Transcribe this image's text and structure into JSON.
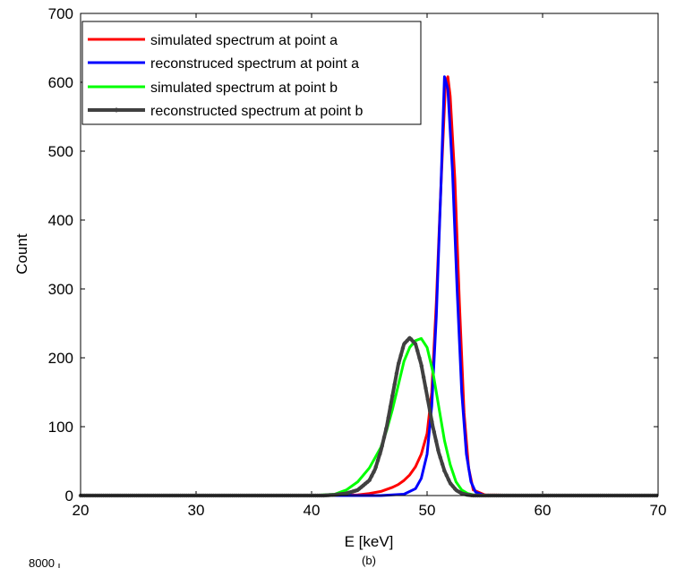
{
  "chart_data": {
    "type": "line",
    "title": "",
    "xlabel": "E [keV]",
    "ylabel": "Count",
    "xlim": [
      20,
      70
    ],
    "ylim": [
      0,
      700
    ],
    "x_ticks": [
      20,
      30,
      40,
      50,
      60,
      70
    ],
    "y_ticks": [
      0,
      100,
      200,
      300,
      400,
      500,
      600,
      700
    ],
    "grid": false,
    "legend_position": "top-left",
    "series": [
      {
        "name": "simulated spectrum at point a",
        "color": "#ff0000",
        "x": [
          20,
          40,
          44,
          45,
          46,
          47,
          47.5,
          48,
          48.5,
          49,
          49.5,
          50,
          50.4,
          50.8,
          51.2,
          51.6,
          51.8,
          52,
          52.4,
          52.8,
          53.2,
          53.6,
          54,
          55,
          60,
          70
        ],
        "y": [
          0,
          0,
          1,
          3,
          6,
          12,
          16,
          22,
          30,
          42,
          60,
          90,
          150,
          280,
          450,
          600,
          608,
          580,
          460,
          280,
          120,
          40,
          8,
          1,
          0,
          0
        ]
      },
      {
        "name": "reconstruced spectrum at point a",
        "color": "#0000ff",
        "x": [
          20,
          46,
          48,
          49,
          49.5,
          50,
          50.4,
          50.8,
          51.2,
          51.5,
          51.8,
          52.2,
          52.6,
          53,
          53.4,
          53.8,
          54.2,
          55,
          60,
          70
        ],
        "y": [
          0,
          0,
          2,
          10,
          25,
          60,
          130,
          260,
          450,
          608,
          590,
          470,
          300,
          150,
          60,
          20,
          5,
          0,
          0,
          0
        ]
      },
      {
        "name": "simulated spectrum at point b",
        "color": "#00ff00",
        "x": [
          20,
          40,
          42,
          43,
          44,
          45,
          46,
          46.5,
          47,
          47.5,
          48,
          48.5,
          49,
          49.5,
          50,
          50.5,
          51,
          51.5,
          52,
          52.5,
          53,
          53.5,
          54,
          55,
          60,
          70
        ],
        "y": [
          0,
          0,
          2,
          8,
          20,
          40,
          70,
          95,
          125,
          160,
          195,
          215,
          225,
          228,
          215,
          180,
          130,
          80,
          45,
          20,
          8,
          3,
          1,
          0,
          0,
          0
        ]
      },
      {
        "name": "reconstructed spectrum at point b",
        "color": "#404040",
        "x": [
          20,
          39,
          41,
          42,
          43,
          44,
          45,
          45.5,
          46,
          46.5,
          47,
          47.5,
          48,
          48.5,
          49,
          49.5,
          50,
          50.5,
          51,
          51.5,
          52,
          52.5,
          53,
          53.5,
          54,
          55,
          60,
          70
        ],
        "y": [
          0,
          0,
          0,
          1,
          3,
          8,
          22,
          38,
          65,
          100,
          145,
          190,
          220,
          229,
          220,
          190,
          145,
          100,
          63,
          36,
          18,
          8,
          3,
          1,
          0,
          0,
          0,
          0
        ]
      }
    ]
  },
  "footer": {
    "panel_label": "(b)",
    "next_chart_top_tick": "8000"
  }
}
